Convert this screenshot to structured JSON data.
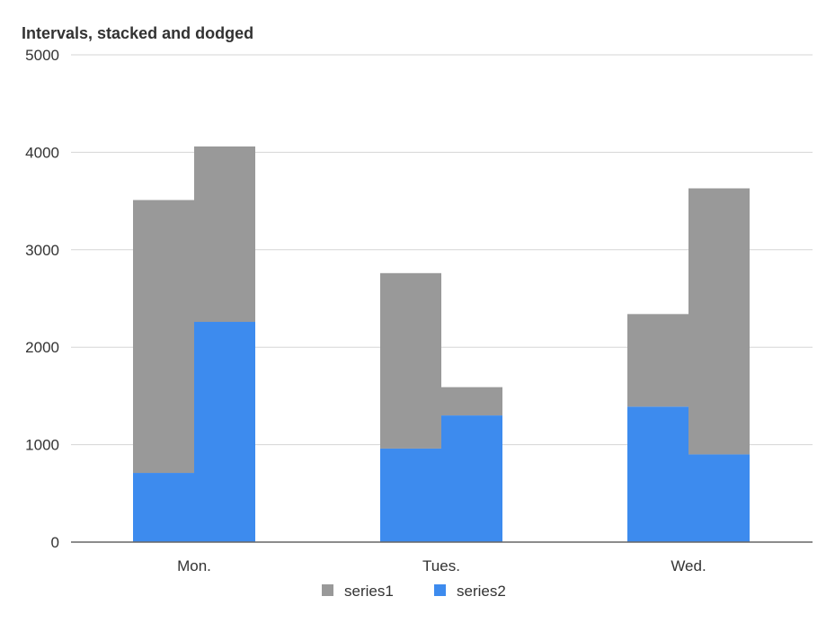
{
  "chart_data": {
    "type": "bar",
    "title": "Intervals, stacked and dodged",
    "xlabel": "",
    "ylabel": "",
    "categories": [
      "Mon.",
      "Tues.",
      "Wed."
    ],
    "ylim": [
      0,
      5000
    ],
    "yticks": [
      0,
      1000,
      2000,
      3000,
      4000,
      5000
    ],
    "grid": true,
    "legend_position": "bottom",
    "colors": {
      "series1": "#999999",
      "series2": "#3d8bee",
      "grid": "#d5d5d5",
      "axis": "#666666"
    },
    "groups": [
      {
        "category": "Mon.",
        "bars": [
          {
            "series2": 710,
            "series1": 2800
          },
          {
            "series2": 2260,
            "series1": 1800
          }
        ]
      },
      {
        "category": "Tues.",
        "bars": [
          {
            "series2": 960,
            "series1": 1800
          },
          {
            "series2": 1300,
            "series1": 290
          }
        ]
      },
      {
        "category": "Wed.",
        "bars": [
          {
            "series2": 1390,
            "series1": 950
          },
          {
            "series2": 900,
            "series1": 2730
          }
        ]
      }
    ],
    "series": [
      {
        "name": "series1"
      },
      {
        "name": "series2"
      }
    ]
  }
}
